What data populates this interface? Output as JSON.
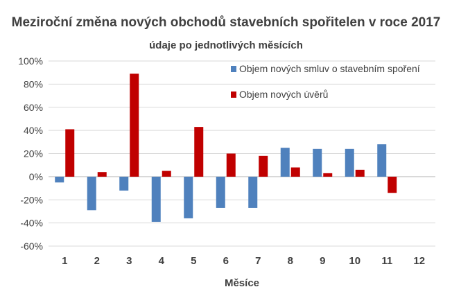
{
  "chart_data": {
    "type": "bar",
    "title": "Meziroční změna nových obchodů stavebních spořitelen v roce 2017",
    "subtitle": "údaje po jednotlivých měsících",
    "xlabel": "Měsíce",
    "ylabel": "",
    "categories": [
      "1",
      "2",
      "3",
      "4",
      "5",
      "6",
      "7",
      "8",
      "9",
      "10",
      "11",
      "12"
    ],
    "series": [
      {
        "name": "Objem nových smluv o stavebním spoření",
        "color": "#4f81bd",
        "values": [
          -5,
          -29,
          -12,
          -39,
          -36,
          -27,
          -27,
          25,
          24,
          24,
          28,
          null
        ]
      },
      {
        "name": "Objem nových úvěrů",
        "color": "#c00000",
        "values": [
          41,
          4,
          89,
          5,
          43,
          20,
          18,
          8,
          3,
          6,
          -14,
          null
        ]
      }
    ],
    "ylim": [
      -60,
      100
    ],
    "yticks": [
      -60,
      -40,
      -20,
      0,
      20,
      40,
      60,
      80,
      100
    ],
    "ytick_labels": [
      "-60%",
      "-40%",
      "-20%",
      "0%",
      "20%",
      "40%",
      "60%",
      "80%",
      "100%"
    ],
    "grid": true,
    "legend_position": "top-right"
  }
}
